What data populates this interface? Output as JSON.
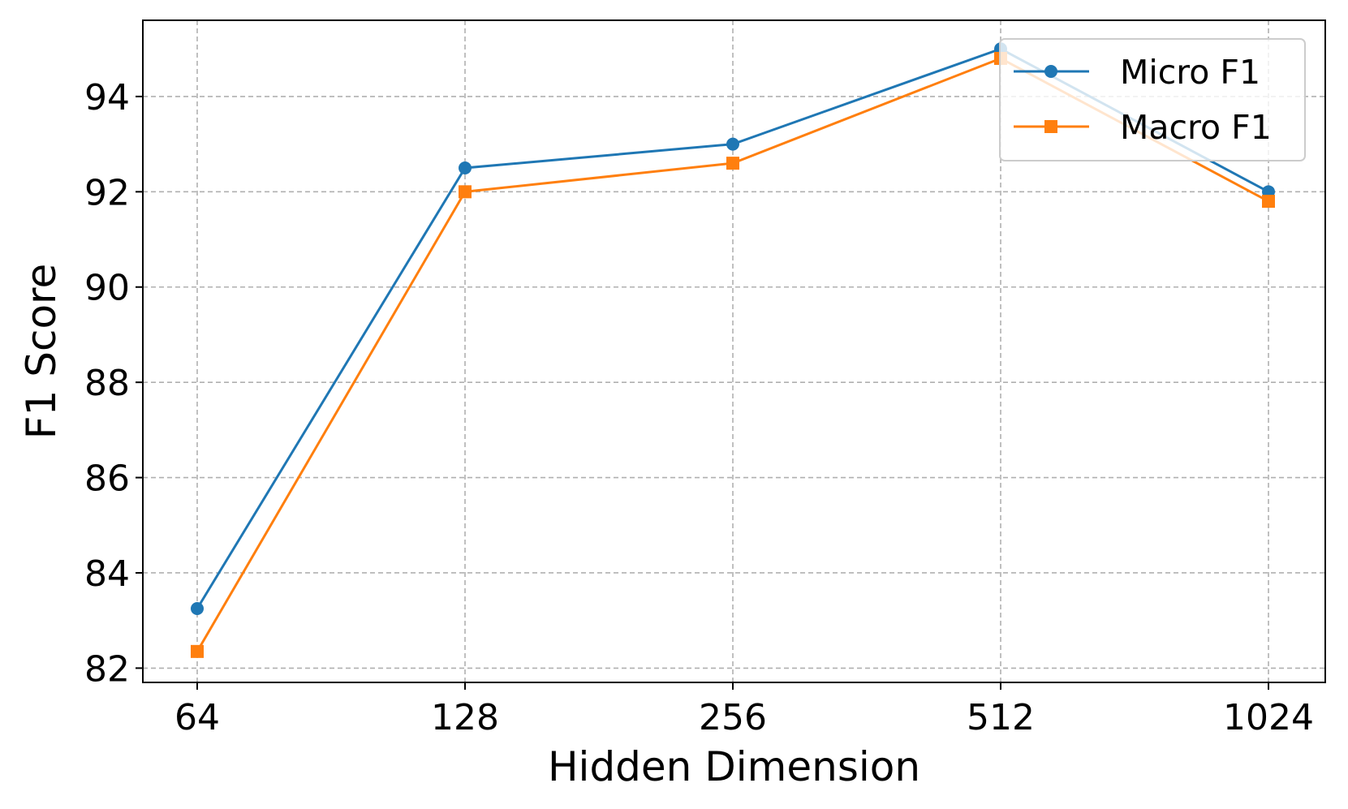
{
  "chart_data": {
    "type": "line",
    "x": [
      "64",
      "128",
      "256",
      "512",
      "1024"
    ],
    "xlabel": "Hidden Dimension",
    "ylabel": "F1 Score",
    "ylim": [
      81.7,
      95.6
    ],
    "yticks": [
      82,
      84,
      86,
      88,
      90,
      92,
      94
    ],
    "grid": true,
    "legend_position": "top-right",
    "series": [
      {
        "name": "Micro F1",
        "values": [
          83.25,
          92.5,
          93.0,
          95.0,
          92.0
        ],
        "color": "#1f77b4",
        "marker": "circle"
      },
      {
        "name": "Macro F1",
        "values": [
          82.35,
          92.0,
          92.6,
          94.8,
          91.8
        ],
        "color": "#ff7f0e",
        "marker": "square"
      }
    ]
  }
}
